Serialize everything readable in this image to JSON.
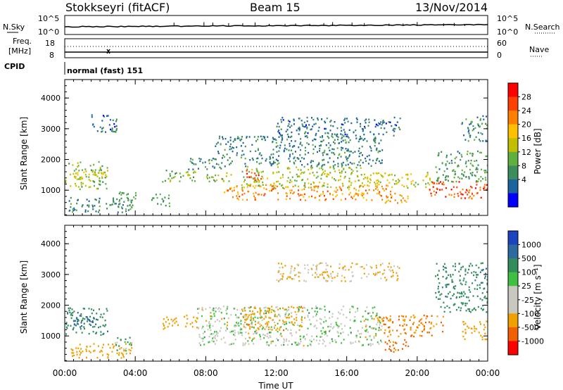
{
  "header": {
    "station": "Stokkseyri (fitACF)",
    "beam": "Beam 15",
    "date": "13/Nov/2014"
  },
  "top_panels": {
    "nsky_label": "N.Sky",
    "nsearch_label": "N.Search",
    "nsky_ticks": [
      "10^5",
      "10^0"
    ],
    "nsearch_ticks": [
      "10^5",
      "10^0"
    ],
    "freq_label_line1": "Freq.",
    "freq_label_line2": "[MHz]",
    "freq_ticks": [
      "18",
      "8"
    ],
    "nave_label": "Nave",
    "nave_ticks": [
      "60",
      "0"
    ],
    "cpid_label": "CPID",
    "cpid_text": "normal (fast) 151"
  },
  "axes": {
    "ylabel": "Slant Range [km]",
    "xlabel": "Time UT",
    "y_ticks": [
      "1000",
      "2000",
      "3000",
      "4000"
    ],
    "x_ticks": [
      "00:00",
      "04:00",
      "08:00",
      "12:00",
      "16:00",
      "20:00",
      "00:00"
    ]
  },
  "colorbars": {
    "power": {
      "label": "Power [dB]",
      "ticks": [
        "28",
        "24",
        "20",
        "16",
        "12",
        "8",
        "4"
      ],
      "colors": [
        "#ff0000",
        "#ff4000",
        "#ff8000",
        "#ffc000",
        "#c0c000",
        "#60b040",
        "#3c8c5c",
        "#1c64a0",
        "#0000ff"
      ]
    },
    "velocity": {
      "label": "Velocity [m s⁻¹]",
      "ticks": [
        "1000",
        "500",
        "100",
        "25",
        "-25",
        "-100",
        "-500",
        "-1000"
      ],
      "colors": [
        "#1c44c0",
        "#2e6aa0",
        "#338c5c",
        "#40c040",
        "#c8c8c0",
        "#c8c8c0",
        "#f0a000",
        "#f06000",
        "#ff0000"
      ]
    }
  },
  "chart_data": [
    {
      "type": "heatmap",
      "title": "Power",
      "xlabel": "Time UT",
      "ylabel": "Slant Range [km]",
      "xlim": [
        "00:00",
        "24:00"
      ],
      "ylim": [
        180,
        4600
      ],
      "clim": [
        0,
        30
      ],
      "blobs": [
        {
          "t0": 0.0,
          "t1": 2.4,
          "r0": 1050,
          "r1": 1950,
          "value": 12
        },
        {
          "t0": 0.5,
          "t1": 2.2,
          "r0": 1350,
          "r1": 1650,
          "value": 18
        },
        {
          "t0": 0.2,
          "t1": 3.8,
          "r0": 300,
          "r1": 800,
          "value": 7
        },
        {
          "t0": 2.8,
          "t1": 4.0,
          "r0": 400,
          "r1": 1000,
          "value": 9
        },
        {
          "t0": 4.8,
          "t1": 6.0,
          "r0": 500,
          "r1": 900,
          "value": 8
        },
        {
          "t0": 5.5,
          "t1": 7.5,
          "r0": 1300,
          "r1": 1700,
          "value": 11
        },
        {
          "t0": 7.0,
          "t1": 9.0,
          "r0": 1700,
          "r1": 2100,
          "value": 8
        },
        {
          "t0": 8.0,
          "t1": 9.5,
          "r0": 1250,
          "r1": 1600,
          "value": 12
        },
        {
          "t0": 9.0,
          "t1": 18.5,
          "r0": 700,
          "r1": 1200,
          "value": 22
        },
        {
          "t0": 10.0,
          "t1": 17.0,
          "r0": 1100,
          "r1": 1800,
          "value": 14
        },
        {
          "t0": 10.2,
          "t1": 11.2,
          "r0": 1350,
          "r1": 1750,
          "value": 27
        },
        {
          "t0": 8.5,
          "t1": 18.0,
          "r0": 1800,
          "r1": 2800,
          "value": 6
        },
        {
          "t0": 17.0,
          "t1": 21.0,
          "r0": 1100,
          "r1": 1600,
          "value": 15
        },
        {
          "t0": 18.0,
          "t1": 19.5,
          "r0": 600,
          "r1": 950,
          "value": 20
        },
        {
          "t0": 20.5,
          "t1": 24.0,
          "r0": 750,
          "r1": 1300,
          "value": 26
        },
        {
          "t0": 21.0,
          "t1": 24.0,
          "r0": 1300,
          "r1": 2300,
          "value": 9
        },
        {
          "t0": 22.5,
          "t1": 24.0,
          "r0": 2600,
          "r1": 3500,
          "value": 7
        },
        {
          "t0": 12.0,
          "t1": 19.0,
          "r0": 2800,
          "r1": 3400,
          "value": 5
        },
        {
          "t0": 1.5,
          "t1": 3.0,
          "r0": 2900,
          "r1": 3500,
          "value": 5
        }
      ]
    },
    {
      "type": "heatmap",
      "title": "Velocity",
      "xlabel": "Time UT",
      "ylabel": "Slant Range [km]",
      "xlim": [
        "00:00",
        "24:00"
      ],
      "ylim": [
        180,
        4600
      ],
      "clim": [
        -1000,
        1000
      ],
      "blobs": [
        {
          "t0": 0.0,
          "t1": 2.4,
          "r0": 1050,
          "r1": 1950,
          "value": 400
        },
        {
          "t0": 0.5,
          "t1": 2.0,
          "r0": 1300,
          "r1": 1700,
          "value": 800
        },
        {
          "t0": 0.3,
          "t1": 3.8,
          "r0": 300,
          "r1": 800,
          "value": -300
        },
        {
          "t0": 2.8,
          "t1": 3.8,
          "r0": 500,
          "r1": 1000,
          "value": 80
        },
        {
          "t0": 5.5,
          "t1": 7.5,
          "r0": 1250,
          "r1": 1700,
          "value": -200
        },
        {
          "t0": 7.5,
          "t1": 18.0,
          "r0": 700,
          "r1": 2000,
          "value": 0
        },
        {
          "t0": 10.0,
          "t1": 13.5,
          "r0": 1200,
          "r1": 2000,
          "value": -400
        },
        {
          "t0": 17.5,
          "t1": 21.5,
          "r0": 1000,
          "r1": 1700,
          "value": -500
        },
        {
          "t0": 18.0,
          "t1": 19.5,
          "r0": 500,
          "r1": 900,
          "value": -600
        },
        {
          "t0": 21.0,
          "t1": 24.0,
          "r0": 1800,
          "r1": 3400,
          "value": 400
        },
        {
          "t0": 22.5,
          "t1": 24.0,
          "r0": 900,
          "r1": 1500,
          "value": -300
        },
        {
          "t0": 12.0,
          "t1": 19.0,
          "r0": 2800,
          "r1": 3400,
          "value": -100
        }
      ]
    }
  ]
}
